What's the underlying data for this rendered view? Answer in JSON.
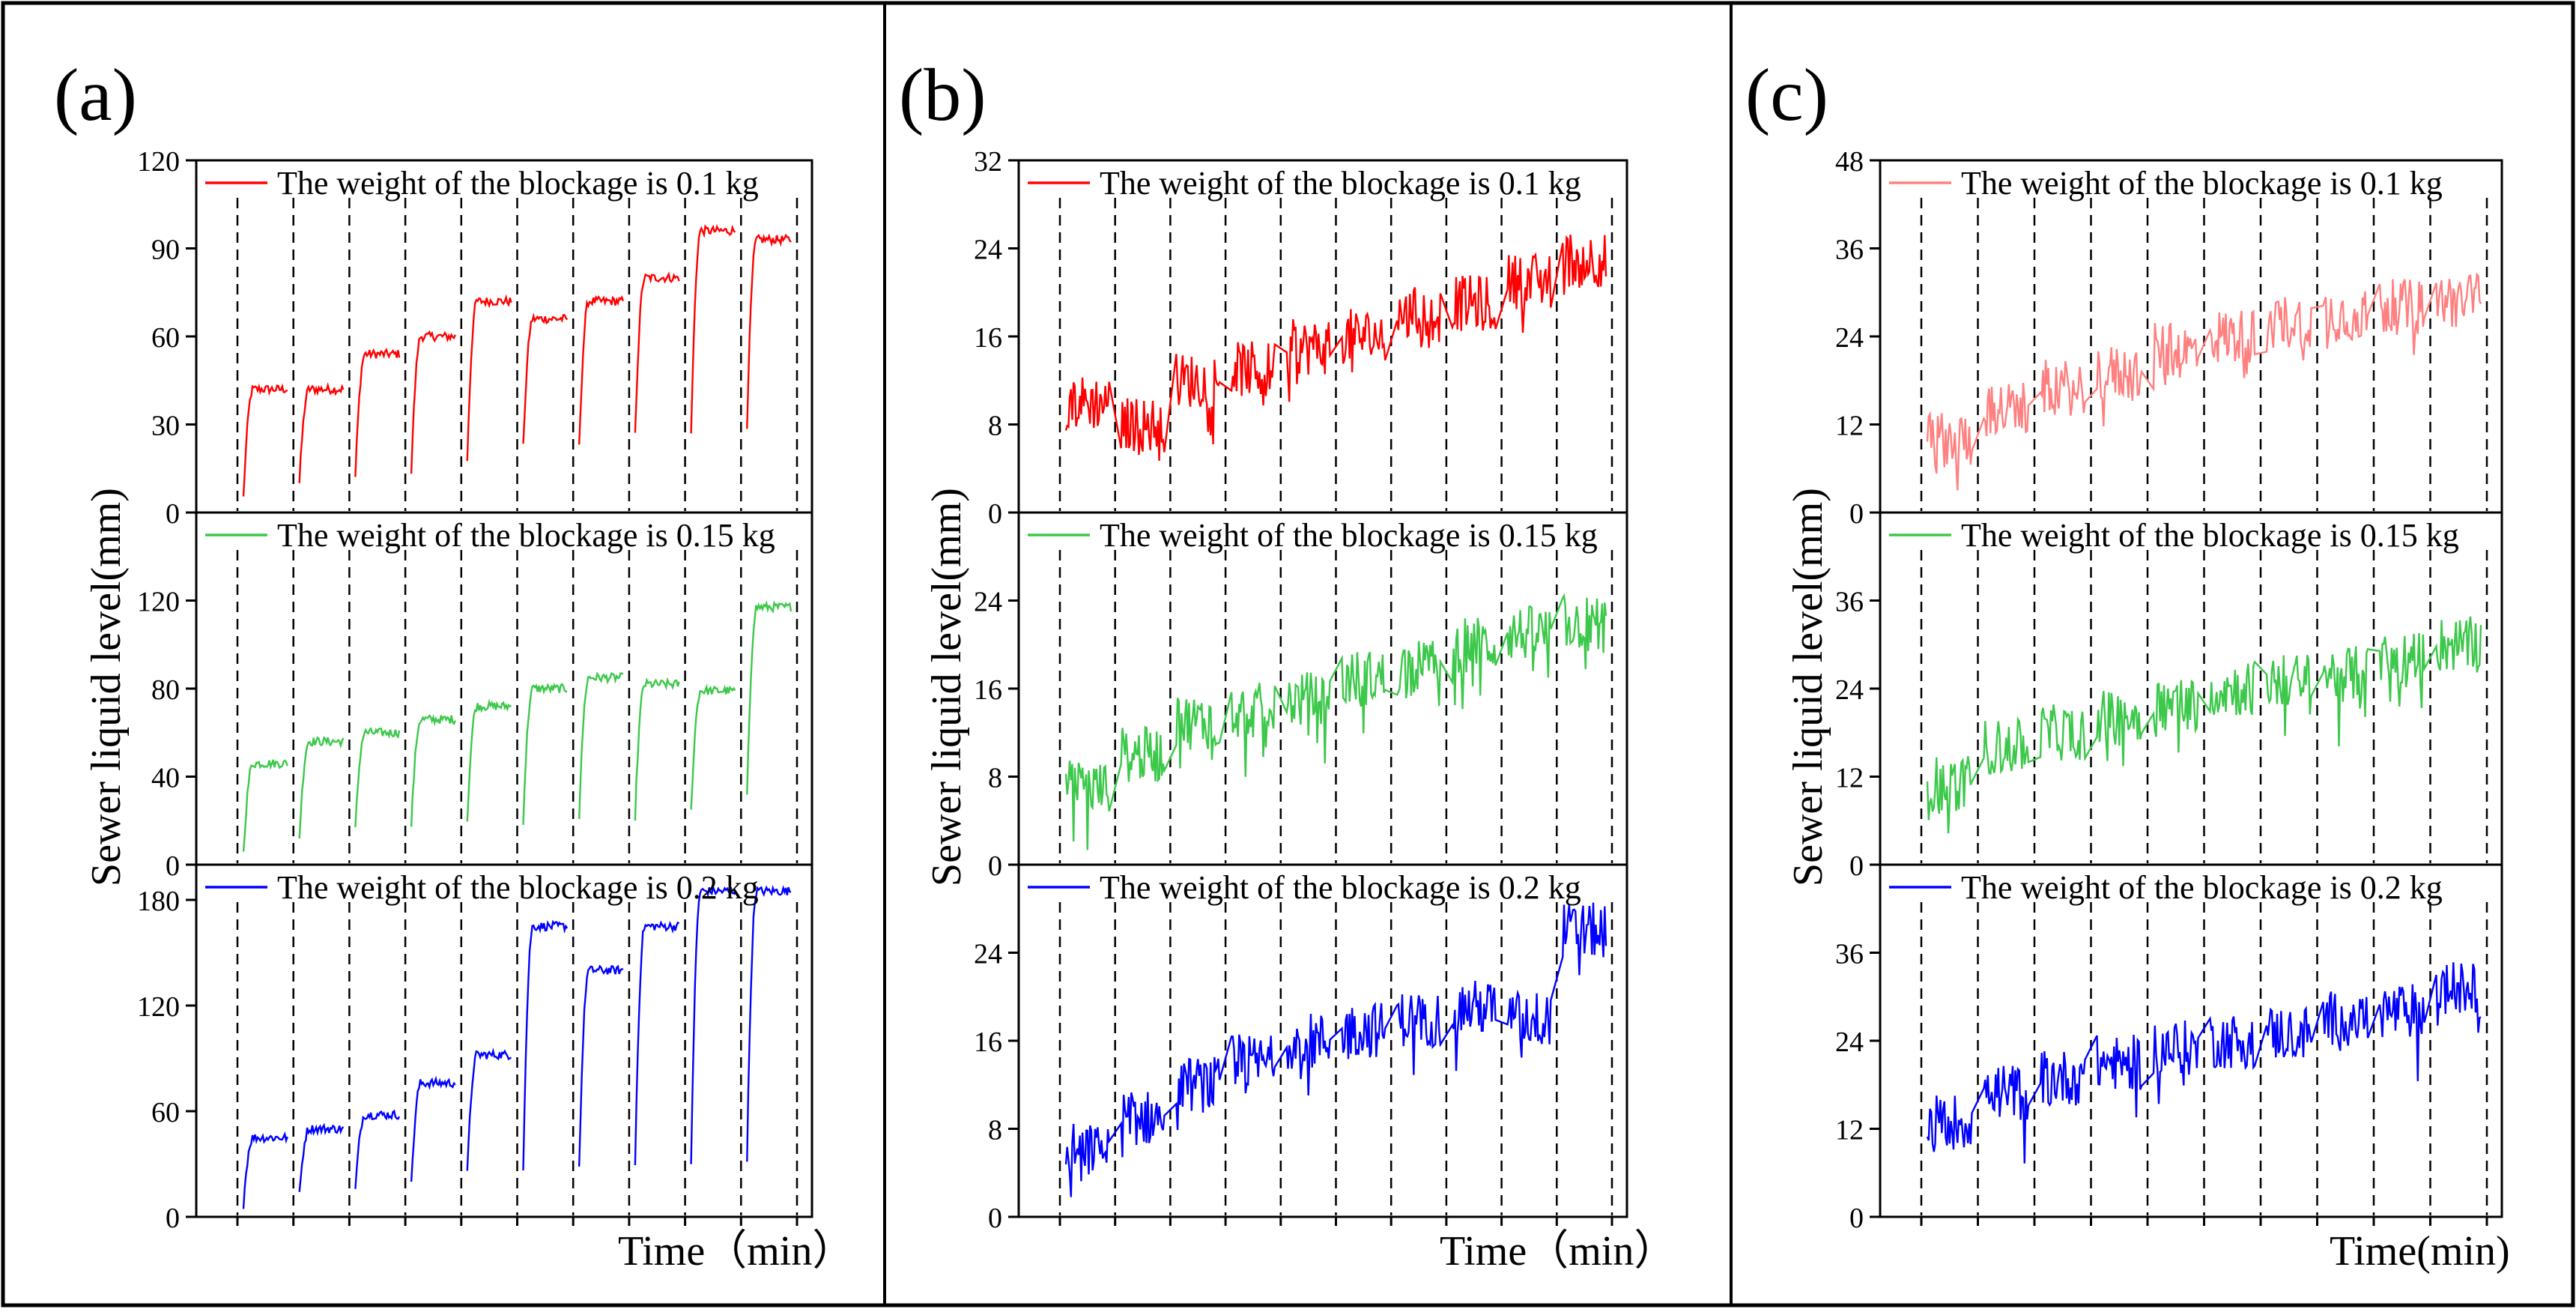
{
  "figure": {
    "panels": [
      {
        "label": "(a)",
        "ylabel": "Sewer liquid level(mm)",
        "xlabel": "Time（min）"
      },
      {
        "label": "(b)",
        "ylabel": "Sewer liquid level(mm)",
        "xlabel": "Time（min）"
      },
      {
        "label": "(c)",
        "ylabel": "Sewer liquid level(mm)",
        "xlabel": "Time(min)"
      }
    ]
  },
  "chart_data": [
    {
      "panel": "(a)",
      "type": "line",
      "xlabel": "Time（min）",
      "ylabel": "Sewer liquid level(mm)",
      "segments_per_series": 10,
      "series": [
        {
          "name": "The weight of the blockage is 0.1 kg",
          "color": "#ff0000",
          "ylim": [
            0,
            120
          ],
          "yticks": [
            0,
            30,
            60,
            90,
            120
          ],
          "segment_levels": [
            [
              5,
              42
            ],
            [
              10,
              42
            ],
            [
              12,
              54
            ],
            [
              14,
              60
            ],
            [
              18,
              72
            ],
            [
              22,
              66
            ],
            [
              22,
              72
            ],
            [
              26,
              80
            ],
            [
              26,
              96
            ],
            [
              30,
              93
            ]
          ]
        },
        {
          "name": "The weight of the blockage is 0.15 kg",
          "color": "#3cc84a",
          "ylim": [
            0,
            160
          ],
          "yticks": [
            0,
            40,
            80,
            120
          ],
          "segment_levels": [
            [
              5,
              46
            ],
            [
              12,
              56
            ],
            [
              16,
              60
            ],
            [
              18,
              66
            ],
            [
              20,
              72
            ],
            [
              20,
              80
            ],
            [
              22,
              85
            ],
            [
              22,
              82
            ],
            [
              24,
              79
            ],
            [
              30,
              117
            ]
          ]
        },
        {
          "name": "The weight of the blockage is 0.2 kg",
          "color": "#0000ff",
          "ylim": [
            0,
            200
          ],
          "yticks": [
            0,
            60,
            120,
            180
          ],
          "segment_levels": [
            [
              7,
              45
            ],
            [
              12,
              50
            ],
            [
              15,
              58
            ],
            [
              18,
              76
            ],
            [
              24,
              92
            ],
            [
              28,
              165
            ],
            [
              28,
              140
            ],
            [
              30,
              165
            ],
            [
              30,
              185
            ],
            [
              32,
              185
            ]
          ]
        }
      ]
    },
    {
      "panel": "(b)",
      "type": "line",
      "xlabel": "Time（min）",
      "ylabel": "Sewer liquid level(mm)",
      "segments_per_series": 10,
      "series": [
        {
          "name": "The weight of the blockage is 0.1 kg",
          "color": "#ff0000",
          "ylim": [
            0,
            32
          ],
          "yticks": [
            0,
            8,
            16,
            24,
            32
          ],
          "segment_levels": [
            10,
            8,
            12,
            13,
            15,
            16,
            18,
            19,
            21,
            23
          ]
        },
        {
          "name": "The weight of the blockage is 0.15 kg",
          "color": "#3cc84a",
          "ylim": [
            0,
            32
          ],
          "yticks": [
            0,
            8,
            16,
            24
          ],
          "segment_levels": [
            7,
            10,
            13,
            14,
            15,
            17,
            18,
            20,
            21,
            22
          ]
        },
        {
          "name": "The weight of the blockage is 0.2 kg",
          "color": "#0000ff",
          "ylim": [
            0,
            32
          ],
          "yticks": [
            0,
            8,
            16,
            24
          ],
          "segment_levels": [
            6,
            9,
            12,
            14,
            16,
            17,
            18,
            19,
            18,
            26
          ]
        }
      ]
    },
    {
      "panel": "(c)",
      "type": "line",
      "xlabel": "Time(min)",
      "ylabel": "Sewer liquid level(mm)",
      "segments_per_series": 10,
      "series": [
        {
          "name": "The weight of the blockage is 0.1 kg",
          "color": "#ff8080",
          "ylim": [
            0,
            48
          ],
          "yticks": [
            0,
            12,
            24,
            36,
            48
          ],
          "segment_levels": [
            10,
            14,
            17,
            19,
            22,
            24,
            26,
            27,
            28,
            29
          ]
        },
        {
          "name": "The weight of the blockage is 0.15 kg",
          "color": "#3cc84a",
          "ylim": [
            0,
            48
          ],
          "yticks": [
            0,
            12,
            24,
            36
          ],
          "segment_levels": [
            11,
            16,
            18,
            20,
            22,
            24,
            25,
            26,
            28,
            30
          ]
        },
        {
          "name": "The weight of the blockage is 0.2 kg",
          "color": "#0000ff",
          "ylim": [
            0,
            48
          ],
          "yticks": [
            0,
            12,
            24,
            36
          ],
          "segment_levels": [
            13,
            17,
            19,
            21,
            23,
            24,
            25,
            27,
            28,
            31
          ]
        }
      ]
    }
  ]
}
